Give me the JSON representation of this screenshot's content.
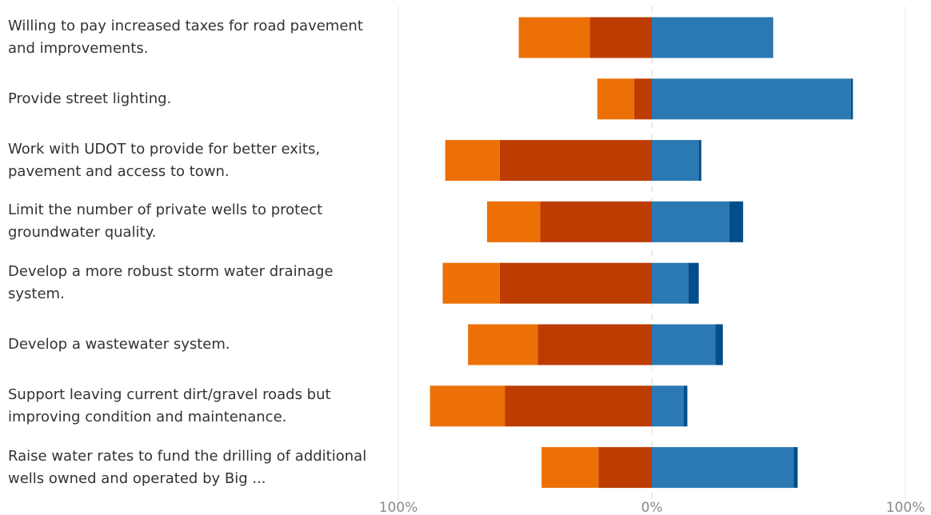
{
  "colors": {
    "strongly_disagree": "#bc3c02",
    "disagree": "#ec7006",
    "agree": "#2b79b2",
    "strongly_agree": "#034e8a",
    "axis": "#dddddd",
    "gridline": "#e6e6e6"
  },
  "chart_data": {
    "type": "bar",
    "orientation": "horizontal",
    "stacked": "diverging",
    "title": "",
    "xlabel": "",
    "ylabel": "",
    "xlim": [
      -100,
      100
    ],
    "x_ticks": [
      "100%",
      "0%",
      "100%"
    ],
    "grid": "center and edge lines",
    "categories": [
      "Willing to pay increased taxes for road pavement and improvements.",
      "Provide street lighting.",
      "Work with UDOT to provide for better exits, pavement and access to town.",
      "Limit the number of private wells to protect groundwater quality.",
      "Develop a more robust storm water drainage system.",
      "Develop a wastewater system.",
      "Support leaving current dirt/gravel roads but improving condition and maintenance.",
      "Raise water rates to fund the drilling of additional wells owned and operated by Big ..."
    ],
    "series": [
      {
        "side": "negative",
        "color_key": "strongly_disagree",
        "values": [
          24.5,
          7,
          60,
          44,
          60,
          45,
          58,
          21
        ]
      },
      {
        "side": "negative",
        "color_key": "disagree",
        "values": [
          28,
          14.5,
          21.5,
          21,
          22.5,
          27.5,
          29.5,
          22.5
        ]
      },
      {
        "side": "positive",
        "color_key": "agree",
        "values": [
          47.5,
          78.5,
          18.5,
          30.5,
          14.5,
          25,
          12.5,
          56
        ]
      },
      {
        "side": "positive",
        "color_key": "strongly_agree",
        "values": [
          0.3,
          0.8,
          1,
          5.5,
          4,
          3,
          1.5,
          1.5
        ]
      }
    ]
  }
}
